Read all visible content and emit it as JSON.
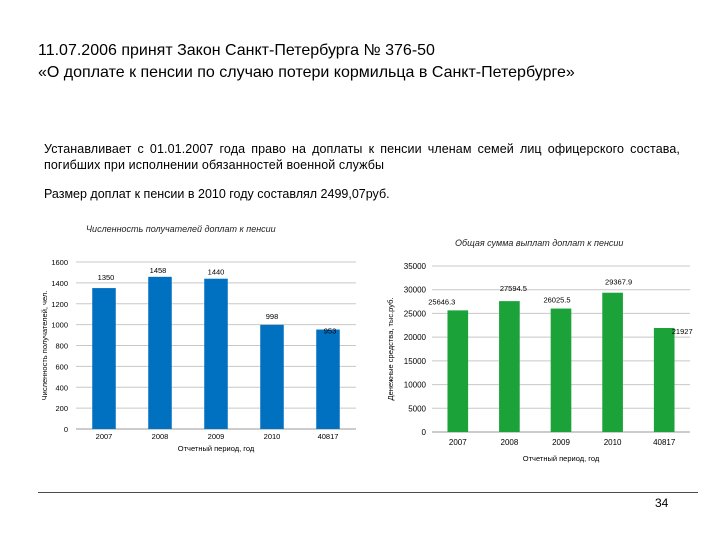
{
  "title": {
    "line1": "11.07.2006 принят Закон Санкт-Петербурга № 376-50",
    "line2": "«О доплате к пенсии по случаю потери кормильца в Санкт-Петербурге»"
  },
  "paragraph1": "Устанавливает с 01.01.2007 года право на доплаты к пенсии членам семей лиц офицерского состава, погибших при исполнении обязанностей военной службы",
  "paragraph2": "Размер доплат к пенсии в 2010 году составлял 2499,07руб.",
  "page_number": "34",
  "colors": {
    "left_bars": "#0070c0",
    "right_bars": "#1ba33a"
  },
  "chart_data": [
    {
      "type": "bar",
      "title": "Численность получателей доплат к пенсии",
      "xlabel": "Отчетный период, год",
      "ylabel": "Численность получателей, чел.",
      "categories": [
        "2007",
        "2008",
        "2009",
        "2010",
        "40817"
      ],
      "values": [
        1350,
        1458,
        1440,
        998,
        953
      ],
      "value_labels": [
        "1350",
        "1458",
        "1440",
        "998",
        "953"
      ],
      "ylim": [
        0,
        1600
      ],
      "yticks": [
        "0",
        "200",
        "400",
        "600",
        "800",
        "1000",
        "1200",
        "1400",
        "1600"
      ],
      "grid": true
    },
    {
      "type": "bar",
      "title": "Общая сумма выплат доплат к пенсии",
      "xlabel": "Отчетный период, год",
      "ylabel": "Денежные средства, тыс.руб.",
      "categories": [
        "2007",
        "2008",
        "2009",
        "2010",
        "40817"
      ],
      "values": [
        25646.3,
        27594.5,
        26025.5,
        29367.9,
        21927
      ],
      "value_labels": [
        "25646.3",
        "27594.5",
        "26025.5",
        "29367.9",
        "21927"
      ],
      "ylim": [
        0,
        35000
      ],
      "yticks": [
        "0",
        "5000",
        "10000",
        "15000",
        "20000",
        "25000",
        "30000",
        "35000"
      ],
      "grid": true
    }
  ]
}
